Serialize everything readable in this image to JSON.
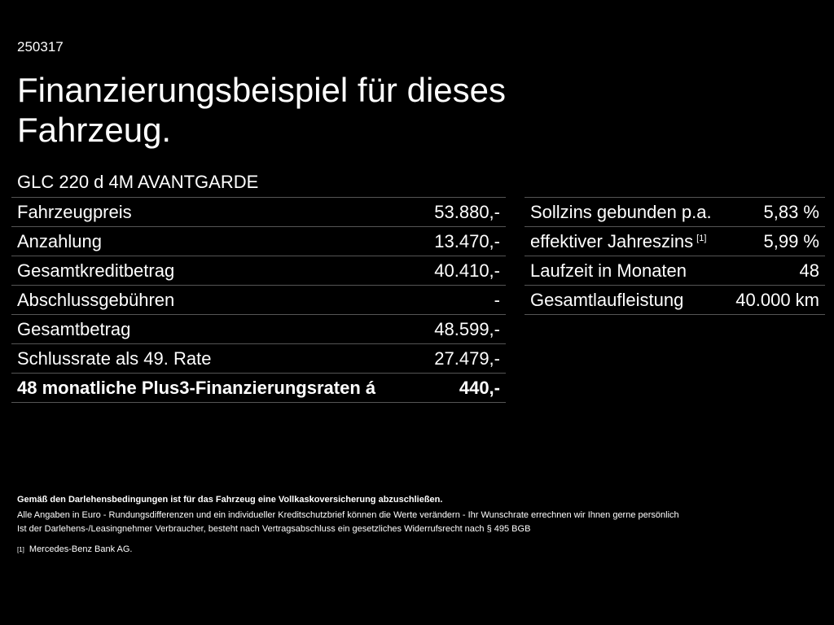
{
  "code": "250317",
  "title": "Finanzierungsbeispiel für dieses Fahrzeug.",
  "model": "GLC 220 d 4M AVANTGARDE",
  "left_table": [
    {
      "label": "Fahrzeugpreis",
      "value": "53.880,-"
    },
    {
      "label": "Anzahlung",
      "value": "13.470,-"
    },
    {
      "label": "Gesamtkreditbetrag",
      "value": "40.410,-"
    },
    {
      "label": "Abschlussgebühren",
      "value": "-"
    },
    {
      "label": "Gesamtbetrag",
      "value": "48.599,-"
    },
    {
      "label": "Schlussrate als 49. Rate",
      "value": "27.479,-"
    },
    {
      "label": "48 monatliche Plus3-Finanzierungsraten á",
      "value": "440,-"
    }
  ],
  "right_table": [
    {
      "label": "Sollzins gebunden p.a.",
      "value": "5,83 %"
    },
    {
      "label": "effektiver Jahreszins",
      "sup": "[1]",
      "value": "5,99 %"
    },
    {
      "label": "Laufzeit in Monaten",
      "value": "48"
    },
    {
      "label": "Gesamtlaufleistung",
      "value": "40.000 km"
    }
  ],
  "notes": {
    "insurance": "Gemäß den Darlehensbedingungen ist für das Fahrzeug eine Vollkaskoversicherung abzuschließen.",
    "line1": "Alle Angaben in Euro - Rundungsdifferenzen und ein individueller Kreditschutzbrief können die Werte verändern - Ihr Wunschrate errechnen wir Ihnen gerne persönlich",
    "line2": "Ist der Darlehens-/Leasingnehmer Verbraucher, besteht nach Vertragsabschluss ein gesetzliches Widerrufsrecht nach § 495 BGB",
    "footnote_mark": "[1]",
    "footnote": "Mercedes-Benz Bank AG."
  }
}
